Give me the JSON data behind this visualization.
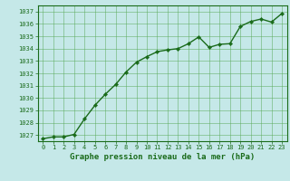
{
  "x": [
    0,
    1,
    2,
    3,
    4,
    5,
    6,
    7,
    8,
    9,
    10,
    11,
    12,
    13,
    14,
    15,
    16,
    17,
    18,
    19,
    20,
    21,
    22,
    23
  ],
  "y": [
    1026.7,
    1026.85,
    1026.85,
    1027.05,
    1028.3,
    1029.4,
    1030.3,
    1031.1,
    1032.1,
    1032.9,
    1033.35,
    1033.75,
    1033.9,
    1034.0,
    1034.4,
    1034.95,
    1034.1,
    1034.35,
    1034.4,
    1035.8,
    1036.2,
    1036.4,
    1036.15,
    1036.85
  ],
  "line_color": "#1a6b1a",
  "marker": "D",
  "marker_size": 2.2,
  "line_width": 1.0,
  "bg_color": "#c5e8e8",
  "plot_bg_color": "#c5e8e8",
  "grid_color": "#5aaa5a",
  "title": "Graphe pression niveau de la mer (hPa)",
  "ylim": [
    1026.5,
    1037.5
  ],
  "yticks": [
    1027,
    1028,
    1029,
    1030,
    1031,
    1032,
    1033,
    1034,
    1035,
    1036,
    1037
  ],
  "xticks": [
    0,
    1,
    2,
    3,
    4,
    5,
    6,
    7,
    8,
    9,
    10,
    11,
    12,
    13,
    14,
    15,
    16,
    17,
    18,
    19,
    20,
    21,
    22,
    23
  ],
  "tick_color": "#1a6b1a",
  "tick_fontsize": 5.0,
  "title_fontsize": 6.5,
  "title_fontweight": "bold",
  "title_color": "#1a6b1a",
  "spine_color": "#1a6b1a",
  "xlim": [
    -0.5,
    23.5
  ]
}
